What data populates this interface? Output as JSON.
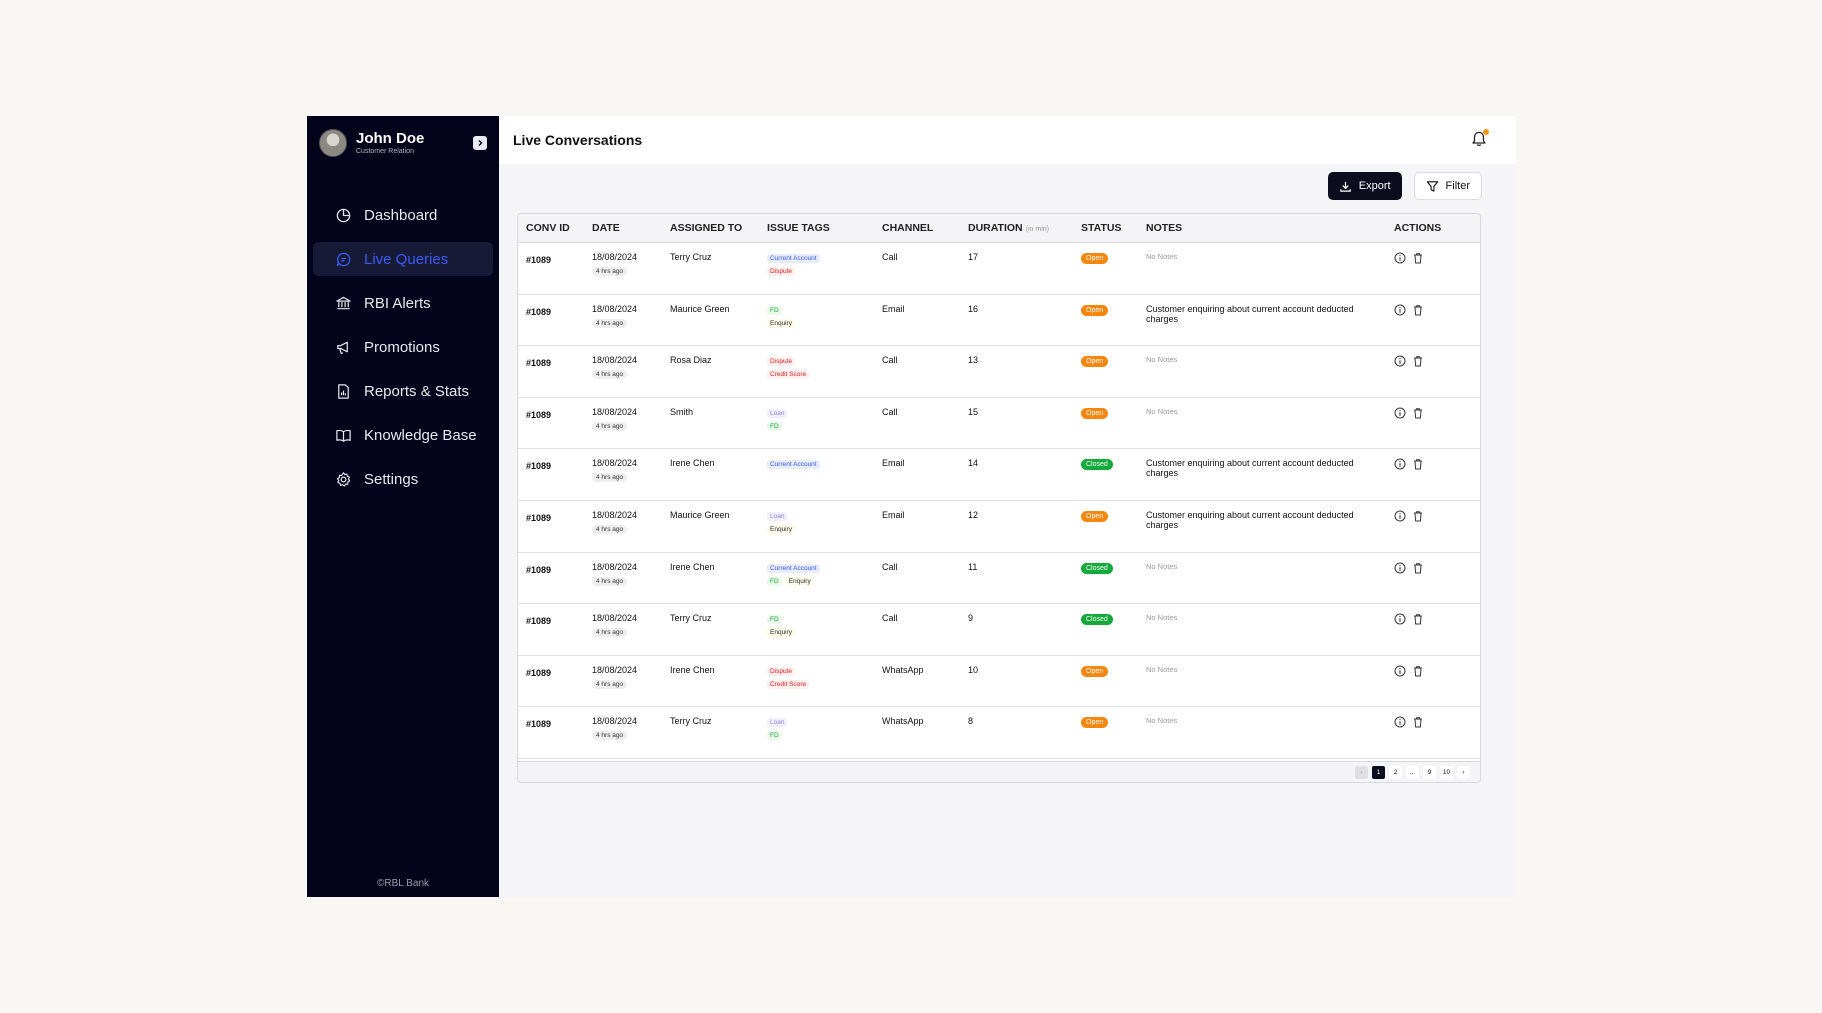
{
  "user": {
    "name": "John Doe",
    "role": "Customer Relation"
  },
  "nav": [
    {
      "label": "Dashboard",
      "icon": "dashboard-icon",
      "active": false
    },
    {
      "label": "Live Queries",
      "icon": "chat-icon",
      "active": true
    },
    {
      "label": "RBI Alerts",
      "icon": "bank-icon",
      "active": false
    },
    {
      "label": "Promotions",
      "icon": "megaphone-icon",
      "active": false
    },
    {
      "label": "Reports & Stats",
      "icon": "report-icon",
      "active": false
    },
    {
      "label": "Knowledge Base",
      "icon": "book-icon",
      "active": false
    },
    {
      "label": "Settings",
      "icon": "gear-icon",
      "active": false
    }
  ],
  "footer": {
    "copyright": "©RBL Bank"
  },
  "header": {
    "title": "Live Conversations"
  },
  "toolbar": {
    "export_label": "Export",
    "filter_label": "Filter"
  },
  "table": {
    "columns": {
      "conv_id": "CONV ID",
      "date": "DATE",
      "assigned_to": "ASSIGNED TO",
      "issue_tags": "ISSUE TAGS",
      "channel": "CHANNEL",
      "duration": "DURATION",
      "duration_unit": "(in min)",
      "status": "STATUS",
      "notes": "NOTES",
      "actions": "ACTIONS"
    },
    "rows": [
      {
        "id": "#1089",
        "date": "18/08/2024",
        "ago": "4 hrs ago",
        "assigned": "Terry Cruz",
        "tags": [
          [
            "Current Account",
            "blue"
          ],
          [
            "Dispute",
            "red"
          ]
        ],
        "channel": "Call",
        "duration": "17",
        "status": "Open",
        "notes": "No Notes"
      },
      {
        "id": "#1089",
        "date": "18/08/2024",
        "ago": "4 hrs ago",
        "assigned": "Maurice Green",
        "tags": [
          [
            "FD",
            "green"
          ],
          [
            "Enquiry",
            "yellow"
          ]
        ],
        "channel": "Email",
        "duration": "16",
        "status": "Open",
        "notes": "Customer enquiring about current account deducted charges"
      },
      {
        "id": "#1089",
        "date": "18/08/2024",
        "ago": "4 hrs ago",
        "assigned": "Rosa Diaz",
        "tags": [
          [
            "Dispute",
            "red"
          ],
          [
            "Credit Score",
            "red"
          ]
        ],
        "channel": "Call",
        "duration": "13",
        "status": "Open",
        "notes": "No Notes"
      },
      {
        "id": "#1089",
        "date": "18/08/2024",
        "ago": "4 hrs ago",
        "assigned": "Smith",
        "tags": [
          [
            "Loan",
            "lav"
          ],
          [
            "FD",
            "green"
          ]
        ],
        "channel": "Call",
        "duration": "15",
        "status": "Open",
        "notes": "No Notes"
      },
      {
        "id": "#1089",
        "date": "18/08/2024",
        "ago": "4 hrs ago",
        "assigned": "Irene Chen",
        "tags": [
          [
            "Current Account",
            "blue"
          ]
        ],
        "channel": "Email",
        "duration": "14",
        "status": "Closed",
        "notes": "Customer enquiring about current account deducted charges"
      },
      {
        "id": "#1089",
        "date": "18/08/2024",
        "ago": "4 hrs ago",
        "assigned": "Maurice Green",
        "tags": [
          [
            "Loan",
            "lav"
          ],
          [
            "Enquiry",
            "yellow"
          ]
        ],
        "channel": "Email",
        "duration": "12",
        "status": "Open",
        "notes": "Customer enquiring about current account deducted charges"
      },
      {
        "id": "#1089",
        "date": "18/08/2024",
        "ago": "4 hrs ago",
        "assigned": "Irene Chen",
        "tags": [
          [
            "Current Account",
            "blue"
          ],
          [
            "FD",
            "green"
          ],
          [
            "Enquiry",
            "yellow"
          ]
        ],
        "channel": "Call",
        "duration": "11",
        "status": "Closed",
        "notes": "No Notes"
      },
      {
        "id": "#1089",
        "date": "18/08/2024",
        "ago": "4 hrs ago",
        "assigned": "Terry Cruz",
        "tags": [
          [
            "FD",
            "green"
          ],
          [
            "Enquiry",
            "yellow"
          ]
        ],
        "channel": "Call",
        "duration": "9",
        "status": "Closed",
        "notes": "No Notes"
      },
      {
        "id": "#1089",
        "date": "18/08/2024",
        "ago": "4 hrs ago",
        "assigned": "Irene Chen",
        "tags": [
          [
            "Dispute",
            "red"
          ],
          [
            "Credit Score",
            "red"
          ]
        ],
        "channel": "WhatsApp",
        "duration": "10",
        "status": "Open",
        "notes": "No Notes"
      },
      {
        "id": "#1089",
        "date": "18/08/2024",
        "ago": "4 hrs ago",
        "assigned": "Terry Cruz",
        "tags": [
          [
            "Loan",
            "lav"
          ],
          [
            "FD",
            "green"
          ]
        ],
        "channel": "WhatsApp",
        "duration": "8",
        "status": "Open",
        "notes": "No Notes"
      }
    ]
  },
  "pagination": {
    "prev": "‹",
    "pages": [
      "1",
      "2",
      "...",
      "9",
      "10"
    ],
    "current": "1",
    "next": "›"
  },
  "colors": {
    "sidebar_bg": "#03021b",
    "accent": "#3b5bf6",
    "open": "#f7860d",
    "closed": "#15a83a",
    "notification_dot": "#f7941d"
  }
}
